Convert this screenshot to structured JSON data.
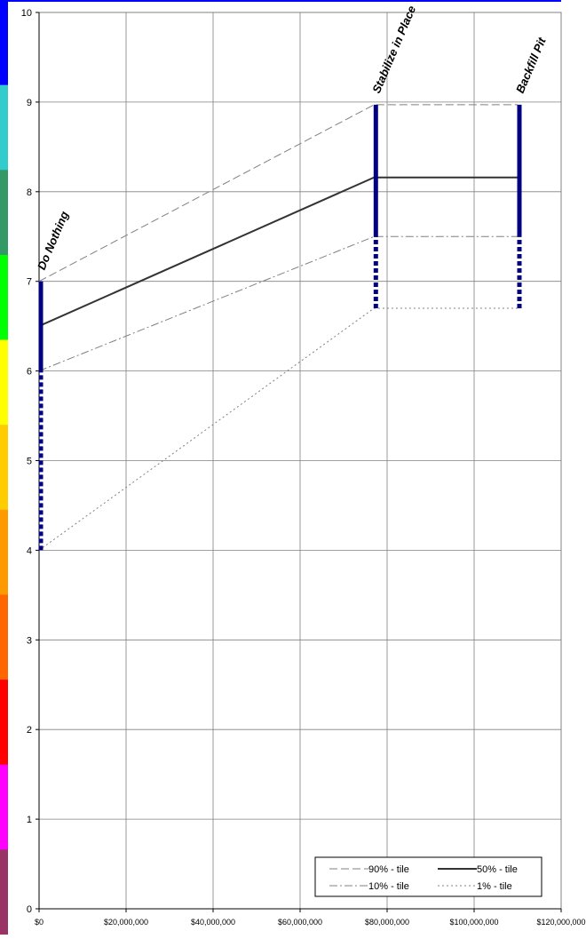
{
  "chart_data": {
    "type": "line",
    "title": "",
    "xlabel": "",
    "ylabel": "",
    "xlim": [
      0,
      120000000
    ],
    "ylim": [
      0,
      10
    ],
    "x_ticks": [
      0,
      20000000,
      40000000,
      60000000,
      80000000,
      100000000,
      120000000
    ],
    "x_tick_labels": [
      "$0",
      "$20,000,000",
      "$40,000,000",
      "$60,000,000",
      "$80,000,000",
      "$100,000,000",
      "$120,000,000"
    ],
    "y_ticks": [
      0,
      1,
      2,
      3,
      4,
      5,
      6,
      7,
      8,
      9,
      10
    ],
    "y_tick_labels": [
      "0",
      "1",
      "2",
      "3",
      "4",
      "5",
      "6",
      "7",
      "8",
      "9",
      "10"
    ],
    "grid": true,
    "legend_position": "bottom-right",
    "color_scale": [
      "#0000ff",
      "#33cccc",
      "#339966",
      "#00ff00",
      "#ffff00",
      "#ffcc00",
      "#ff9900",
      "#ff6600",
      "#ff0000",
      "#ff00ff",
      "#993366"
    ],
    "alternatives": [
      {
        "label": "Do Nothing",
        "x": 0
      },
      {
        "label": "Stabilize in Place",
        "x": 77000000
      },
      {
        "label": "Backfill Pit",
        "x": 110000000
      }
    ],
    "series": [
      {
        "name": "90% - tile",
        "style": "dashed",
        "color": "#808080",
        "x": [
          0,
          77000000,
          110000000
        ],
        "y": [
          7.0,
          8.97,
          8.97
        ]
      },
      {
        "name": "50% - tile",
        "style": "solid",
        "color": "#333333",
        "x": [
          0,
          77000000,
          110000000
        ],
        "y": [
          6.5,
          8.16,
          8.16
        ]
      },
      {
        "name": "10% - tile",
        "style": "dashdot",
        "color": "#808080",
        "x": [
          0,
          77000000,
          110000000
        ],
        "y": [
          6.0,
          7.5,
          7.5
        ]
      },
      {
        "name": "1% - tile",
        "style": "dotted",
        "color": "#808080",
        "x": [
          0,
          77000000,
          110000000
        ],
        "y": [
          4.0,
          6.7,
          6.7
        ]
      }
    ],
    "range_bars": [
      {
        "x": 0,
        "solid": [
          6.0,
          7.0
        ],
        "dotted": [
          4.0,
          6.0
        ]
      },
      {
        "x": 77000000,
        "solid": [
          7.5,
          8.97
        ],
        "dotted": [
          6.7,
          7.5
        ]
      },
      {
        "x": 110000000,
        "solid": [
          7.5,
          8.97
        ],
        "dotted": [
          6.7,
          7.5
        ]
      }
    ],
    "bar_color": "#000080"
  }
}
